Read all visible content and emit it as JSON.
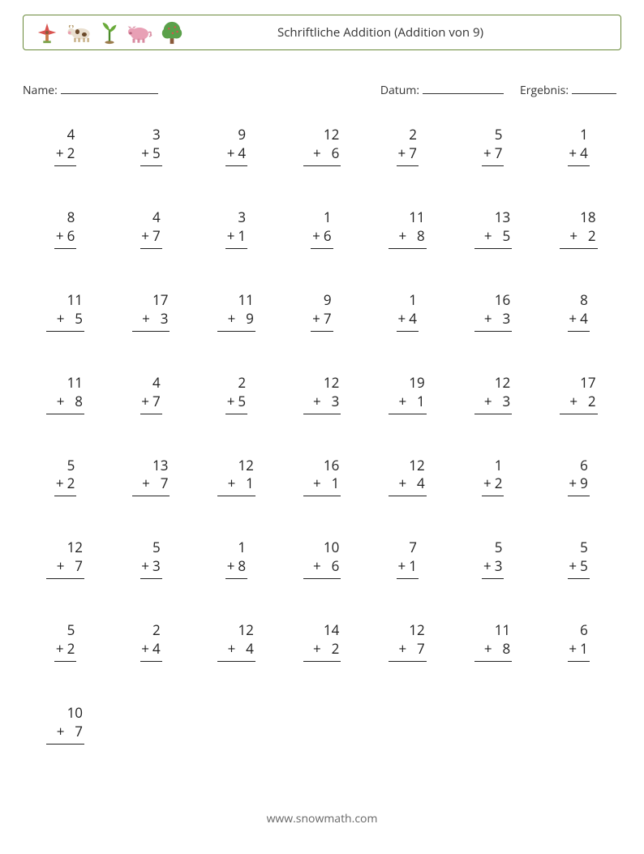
{
  "colors": {
    "border": "#6a8a3a",
    "text": "#333333",
    "footer": "#666666",
    "background": "#ffffff",
    "rule": "#222222"
  },
  "typography": {
    "base_fontsize_pt": 11,
    "problem_fontsize_pt": 13,
    "title_fontsize_pt": 11
  },
  "header": {
    "title": "Schriftliche Addition (Addition von 9)",
    "icons": [
      "windmill",
      "cow",
      "sprout",
      "pig",
      "tree"
    ]
  },
  "fields": {
    "name_label": "Name:",
    "date_label": "Datum:",
    "result_label": "Ergebnis:"
  },
  "grid": {
    "columns": 7,
    "rows": 8
  },
  "problems": [
    {
      "a": 4,
      "b": 2
    },
    {
      "a": 3,
      "b": 5
    },
    {
      "a": 9,
      "b": 4
    },
    {
      "a": 12,
      "b": 6
    },
    {
      "a": 2,
      "b": 7
    },
    {
      "a": 5,
      "b": 7
    },
    {
      "a": 1,
      "b": 4
    },
    {
      "a": 8,
      "b": 6
    },
    {
      "a": 4,
      "b": 7
    },
    {
      "a": 3,
      "b": 1
    },
    {
      "a": 1,
      "b": 6
    },
    {
      "a": 11,
      "b": 8
    },
    {
      "a": 13,
      "b": 5
    },
    {
      "a": 18,
      "b": 2
    },
    {
      "a": 11,
      "b": 5
    },
    {
      "a": 17,
      "b": 3
    },
    {
      "a": 11,
      "b": 9
    },
    {
      "a": 9,
      "b": 7
    },
    {
      "a": 1,
      "b": 4
    },
    {
      "a": 16,
      "b": 3
    },
    {
      "a": 8,
      "b": 4
    },
    {
      "a": 11,
      "b": 8
    },
    {
      "a": 4,
      "b": 7
    },
    {
      "a": 2,
      "b": 5
    },
    {
      "a": 12,
      "b": 3
    },
    {
      "a": 19,
      "b": 1
    },
    {
      "a": 12,
      "b": 3
    },
    {
      "a": 17,
      "b": 2
    },
    {
      "a": 5,
      "b": 2
    },
    {
      "a": 13,
      "b": 7
    },
    {
      "a": 12,
      "b": 1
    },
    {
      "a": 16,
      "b": 1
    },
    {
      "a": 12,
      "b": 4
    },
    {
      "a": 1,
      "b": 2
    },
    {
      "a": 6,
      "b": 9
    },
    {
      "a": 12,
      "b": 7
    },
    {
      "a": 5,
      "b": 3
    },
    {
      "a": 1,
      "b": 8
    },
    {
      "a": 10,
      "b": 6
    },
    {
      "a": 7,
      "b": 1
    },
    {
      "a": 5,
      "b": 3
    },
    {
      "a": 5,
      "b": 5
    },
    {
      "a": 5,
      "b": 2
    },
    {
      "a": 2,
      "b": 4
    },
    {
      "a": 12,
      "b": 4
    },
    {
      "a": 14,
      "b": 2
    },
    {
      "a": 12,
      "b": 7
    },
    {
      "a": 11,
      "b": 8
    },
    {
      "a": 6,
      "b": 1
    },
    {
      "a": 10,
      "b": 7
    }
  ],
  "operator": "+",
  "footer": {
    "text": "www.snowmath.com"
  }
}
